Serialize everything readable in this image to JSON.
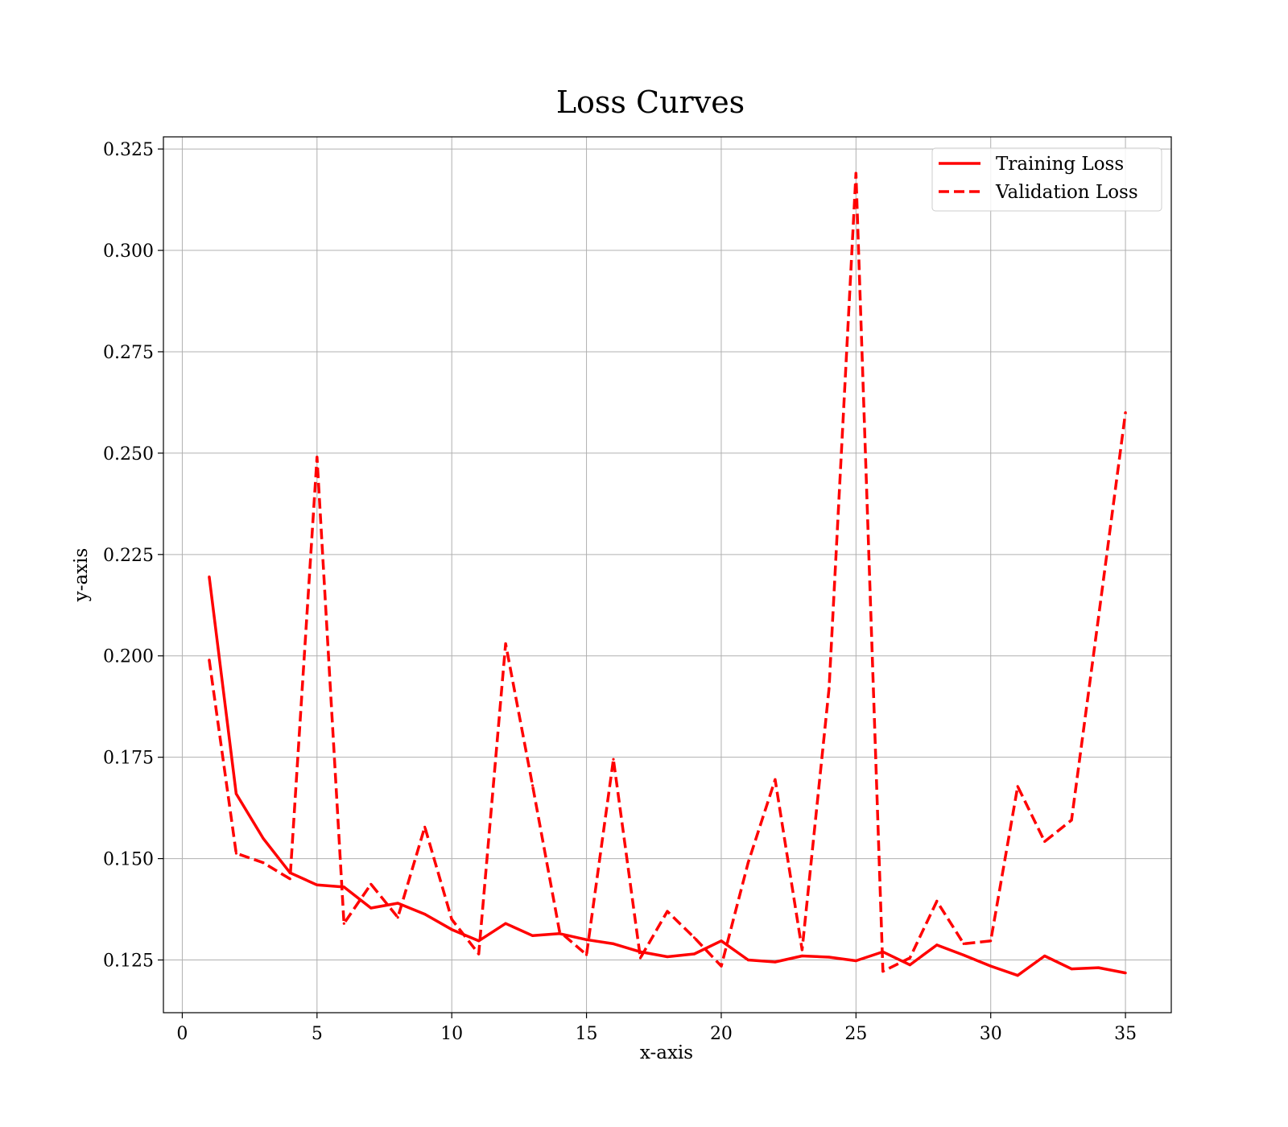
{
  "chart_data": {
    "type": "line",
    "title": "Loss Curves",
    "xlabel": "x-axis",
    "ylabel": "y-axis",
    "xlim": [
      -0.7,
      36.7
    ],
    "ylim": [
      0.112,
      0.328
    ],
    "xticks": [
      0,
      5,
      10,
      15,
      20,
      25,
      30,
      35
    ],
    "yticks": [
      0.125,
      0.15,
      0.175,
      0.2,
      0.225,
      0.25,
      0.275,
      0.3,
      0.325
    ],
    "ytick_labels": [
      "0.125",
      "0.150",
      "0.175",
      "0.200",
      "0.225",
      "0.250",
      "0.275",
      "0.300",
      "0.325"
    ],
    "grid": true,
    "legend_position": "top-right",
    "x": [
      1,
      2,
      3,
      4,
      5,
      6,
      7,
      8,
      9,
      10,
      11,
      12,
      13,
      14,
      15,
      16,
      17,
      18,
      19,
      20,
      21,
      22,
      23,
      24,
      25,
      26,
      27,
      28,
      29,
      30,
      31,
      32,
      33,
      34,
      35
    ],
    "series": [
      {
        "name": "Training Loss",
        "color": "#ff0000",
        "style": "solid",
        "values": [
          0.2195,
          0.166,
          0.155,
          0.1465,
          0.1435,
          0.143,
          0.1378,
          0.139,
          0.1363,
          0.1325,
          0.1297,
          0.134,
          0.131,
          0.1315,
          0.13,
          0.129,
          0.127,
          0.1258,
          0.1265,
          0.1297,
          0.125,
          0.1245,
          0.126,
          0.1257,
          0.1248,
          0.127,
          0.1238,
          0.1287,
          0.1262,
          0.1235,
          0.1212,
          0.126,
          0.1228,
          0.1231,
          0.1218
        ]
      },
      {
        "name": "Validation Loss",
        "color": "#ff0000",
        "style": "dashed",
        "values": [
          0.199,
          0.1513,
          0.149,
          0.145,
          0.249,
          0.134,
          0.1437,
          0.1355,
          0.1578,
          0.135,
          0.1265,
          0.203,
          0.168,
          0.132,
          0.1263,
          0.1745,
          0.1255,
          0.137,
          0.1305,
          0.1235,
          0.149,
          0.1695,
          0.1275,
          0.192,
          0.319,
          0.1222,
          0.1255,
          0.1395,
          0.129,
          0.1297,
          0.1678,
          0.1542,
          0.1595,
          0.2095,
          0.26
        ]
      }
    ]
  }
}
